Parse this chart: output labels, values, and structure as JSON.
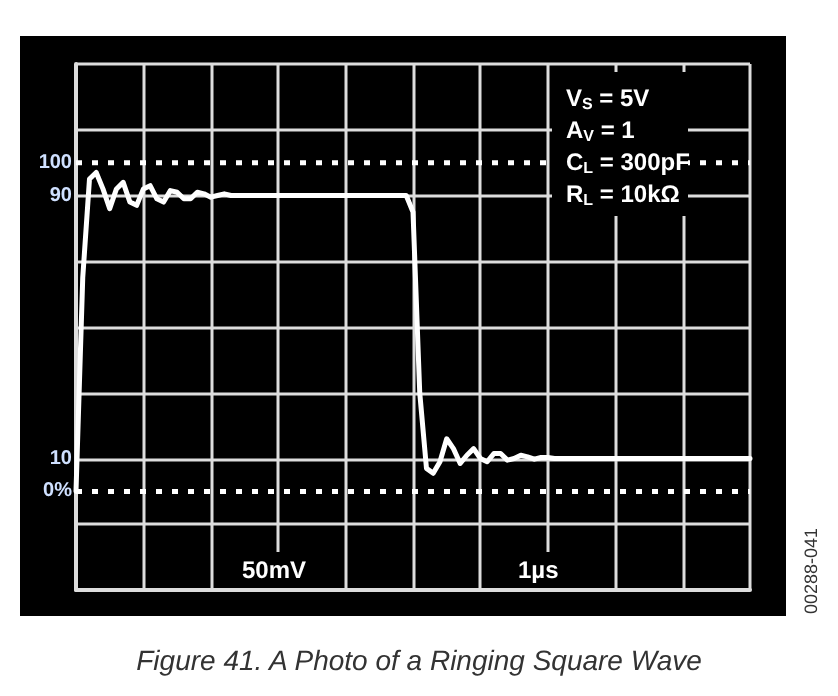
{
  "chart_data": {
    "type": "line",
    "title": "Figure 41. A Photo of a Ringing Square Wave",
    "annotations": [
      "V$_{S}$ = 5V",
      "A$_{V}$ = 1",
      "C$_{L}$ = 300pF",
      "R$_{L}$ = 10kΩ",
      "50mV",
      "1µs",
      "00288-041"
    ],
    "categories": [
      null,
      null,
      null,
      null,
      null,
      null,
      null,
      null,
      null,
      null,
      null,
      null,
      null,
      null,
      null,
      null,
      null,
      null,
      null,
      null,
      null,
      null,
      null,
      null,
      null,
      null,
      null,
      null,
      null,
      null,
      null,
      null,
      null,
      null,
      null,
      null,
      null,
      null,
      null,
      null,
      null,
      null,
      null,
      null,
      null,
      null,
      null,
      null,
      null,
      null,
      null,
      null,
      null,
      null,
      null,
      null,
      null,
      null,
      null,
      null,
      null,
      null,
      null,
      null,
      null,
      null,
      null,
      null,
      null,
      null,
      null,
      null,
      null,
      null,
      null,
      null,
      null,
      null,
      null,
      null,
      null,
      null,
      null,
      null,
      null,
      null,
      null,
      null,
      null,
      null,
      null,
      null,
      null,
      null,
      null,
      null,
      null,
      null,
      null,
      null,
      null
    ],
    "values": [
      0,
      65,
      95,
      97,
      92,
      86,
      92,
      94,
      88,
      87,
      92,
      93,
      89,
      88,
      91.5,
      91,
      89,
      89,
      91,
      90.5,
      89.5,
      90,
      90.5,
      90,
      90,
      90,
      90,
      90,
      90,
      90,
      90,
      90,
      90,
      90,
      90,
      90,
      90,
      90,
      90,
      90,
      90,
      90,
      90,
      90,
      90,
      90,
      90,
      90,
      90,
      90,
      85,
      30,
      7,
      5.5,
      9,
      16,
      13,
      8.5,
      11,
      13,
      10,
      9,
      11.5,
      11.5,
      9.5,
      10,
      11,
      10.5,
      9.8,
      10.3,
      10.3,
      10,
      10,
      10,
      10,
      10,
      10,
      10,
      10,
      10,
      10,
      10,
      10,
      10,
      10,
      10,
      10,
      10,
      10,
      10,
      10,
      10,
      10,
      10,
      10,
      10,
      10,
      10,
      10,
      10,
      10
    ],
    "color": "#ffffff",
    "line_style": "solid",
    "ylim": [
      -30,
      130
    ],
    "yticks": [
      {
        "value": -30,
        "label": null
      },
      {
        "value": -10,
        "label": null
      },
      10,
      {
        "value": 30,
        "label": null
      },
      {
        "value": 50,
        "label": null
      },
      {
        "value": 70,
        "label": null
      },
      90,
      {
        "value": 110,
        "label": null
      },
      {
        "value": 130,
        "label": null
      }
    ],
    "tick_labels": "y",
    "grid": true,
    "ref_lines": [
      {
        "axis": "y",
        "value": 100,
        "label": "100",
        "line_style": "dotted",
        "color": "#ffffff"
      },
      {
        "axis": "y",
        "value": 0,
        "label": "0%",
        "line_style": "dotted",
        "color": "#ffffff"
      }
    ]
  }
}
